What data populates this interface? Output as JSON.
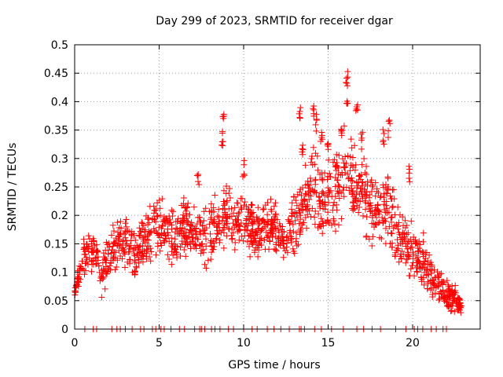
{
  "chart_data": {
    "type": "scatter",
    "title": "Day 299 of 2023, SRMTID for receiver dgar",
    "xlabel": "GPS time / hours",
    "ylabel": "SRMTID / TECUs",
    "xlim": [
      0,
      24
    ],
    "ylim": [
      0,
      0.5
    ],
    "xticks": [
      0,
      5,
      10,
      15,
      20
    ],
    "xtick_labels": [
      "0",
      "5",
      "10",
      "15",
      "20"
    ],
    "yticks": [
      0,
      0.05,
      0.1,
      0.15,
      0.2,
      0.25,
      0.3,
      0.35,
      0.4,
      0.45,
      0.5
    ],
    "ytick_labels": [
      "0",
      "0.05",
      "0.1",
      "0.15",
      "0.2",
      "0.25",
      "0.3",
      "0.35",
      "0.4",
      "0.45",
      "0.5"
    ],
    "grid": true,
    "marker": "+",
    "marker_color": "#ff0000",
    "series": [
      {
        "name": "SRMTID",
        "profile": {
          "x": [
            0.0,
            0.2,
            0.5,
            0.8,
            1.0,
            1.3,
            1.6,
            2.0,
            2.5,
            3.0,
            3.5,
            4.0,
            4.5,
            5.0,
            5.5,
            6.0,
            6.5,
            7.0,
            7.5,
            8.0,
            8.5,
            9.0,
            9.5,
            10.0,
            10.5,
            11.0,
            11.5,
            12.0,
            12.5,
            13.0,
            13.5,
            14.0,
            14.5,
            15.0,
            15.5,
            16.0,
            16.5,
            17.0,
            17.5,
            18.0,
            18.5,
            19.0,
            19.5,
            20.0,
            20.5,
            21.0,
            21.5,
            22.0,
            22.5,
            22.9
          ],
          "y": [
            0.06,
            0.09,
            0.12,
            0.14,
            0.14,
            0.13,
            0.09,
            0.13,
            0.15,
            0.15,
            0.14,
            0.15,
            0.17,
            0.18,
            0.17,
            0.16,
            0.18,
            0.17,
            0.16,
            0.17,
            0.18,
            0.19,
            0.18,
            0.19,
            0.18,
            0.17,
            0.18,
            0.17,
            0.15,
            0.19,
            0.22,
            0.25,
            0.22,
            0.23,
            0.24,
            0.28,
            0.26,
            0.25,
            0.21,
            0.2,
            0.22,
            0.17,
            0.15,
            0.14,
            0.12,
            0.1,
            0.08,
            0.06,
            0.05,
            0.04
          ],
          "spread": [
            0.01,
            0.02,
            0.03,
            0.03,
            0.03,
            0.03,
            0.03,
            0.03,
            0.04,
            0.04,
            0.04,
            0.04,
            0.04,
            0.05,
            0.05,
            0.04,
            0.04,
            0.04,
            0.04,
            0.05,
            0.05,
            0.05,
            0.05,
            0.05,
            0.04,
            0.04,
            0.04,
            0.04,
            0.03,
            0.05,
            0.05,
            0.06,
            0.06,
            0.06,
            0.06,
            0.06,
            0.06,
            0.06,
            0.05,
            0.05,
            0.05,
            0.05,
            0.04,
            0.04,
            0.04,
            0.03,
            0.03,
            0.02,
            0.02,
            0.01
          ]
        },
        "peaks": [
          {
            "x": 7.3,
            "y": 0.285
          },
          {
            "x": 8.8,
            "y": 0.38
          },
          {
            "x": 8.75,
            "y": 0.355
          },
          {
            "x": 10.0,
            "y": 0.3
          },
          {
            "x": 13.3,
            "y": 0.4
          },
          {
            "x": 13.5,
            "y": 0.34
          },
          {
            "x": 14.1,
            "y": 0.4
          },
          {
            "x": 14.3,
            "y": 0.38
          },
          {
            "x": 14.6,
            "y": 0.36
          },
          {
            "x": 15.0,
            "y": 0.34
          },
          {
            "x": 15.5,
            "y": 0.31
          },
          {
            "x": 15.8,
            "y": 0.37
          },
          {
            "x": 16.1,
            "y": 0.455
          },
          {
            "x": 16.15,
            "y": 0.43
          },
          {
            "x": 16.7,
            "y": 0.4
          },
          {
            "x": 17.0,
            "y": 0.35
          },
          {
            "x": 18.3,
            "y": 0.36
          },
          {
            "x": 18.6,
            "y": 0.37
          },
          {
            "x": 19.8,
            "y": 0.29
          }
        ],
        "zero_points_x": [
          0.6,
          1.1,
          1.3,
          2.2,
          2.5,
          2.7,
          3.0,
          3.4,
          3.9,
          4.1,
          4.6,
          4.8,
          5.1,
          5.3,
          5.7,
          6.2,
          6.5,
          7.1,
          7.4,
          7.5,
          7.7,
          8.1,
          8.3,
          8.6,
          9.1,
          9.4,
          10.0,
          10.5,
          10.8,
          11.4,
          11.8,
          12.2,
          12.7,
          13.3,
          13.4,
          13.6,
          14.2,
          14.6,
          15.2,
          15.9,
          16.7,
          17.1,
          17.6,
          18.1,
          19.0,
          19.6,
          20.1,
          20.3,
          20.6,
          21.1,
          21.4,
          21.8,
          22.0
        ]
      }
    ]
  }
}
